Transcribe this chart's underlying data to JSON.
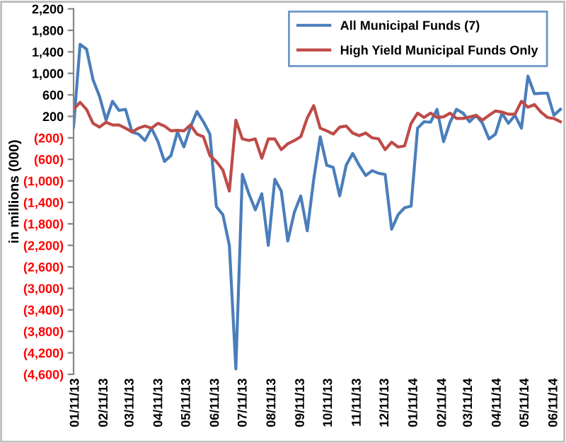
{
  "chart_data": {
    "type": "line",
    "ylabel": "in millions (000)",
    "x": [
      "2013-01-09",
      "2013-01-16",
      "2013-01-23",
      "2013-01-30",
      "2013-02-06",
      "2013-02-13",
      "2013-02-20",
      "2013-02-27",
      "2013-03-06",
      "2013-03-13",
      "2013-03-20",
      "2013-03-27",
      "2013-04-03",
      "2013-04-10",
      "2013-04-17",
      "2013-04-24",
      "2013-05-01",
      "2013-05-08",
      "2013-05-15",
      "2013-05-22",
      "2013-05-29",
      "2013-06-05",
      "2013-06-12",
      "2013-06-19",
      "2013-06-26",
      "2013-07-03",
      "2013-07-10",
      "2013-07-17",
      "2013-07-24",
      "2013-07-31",
      "2013-08-07",
      "2013-08-14",
      "2013-08-21",
      "2013-08-28",
      "2013-09-04",
      "2013-09-11",
      "2013-09-18",
      "2013-09-25",
      "2013-10-02",
      "2013-10-09",
      "2013-10-16",
      "2013-10-23",
      "2013-10-30",
      "2013-11-06",
      "2013-11-13",
      "2013-11-20",
      "2013-11-27",
      "2013-12-04",
      "2013-12-11",
      "2013-12-18",
      "2013-12-25",
      "2014-01-01",
      "2014-01-08",
      "2014-01-15",
      "2014-01-22",
      "2014-01-29",
      "2014-02-05",
      "2014-02-12",
      "2014-02-19",
      "2014-02-26",
      "2014-03-05",
      "2014-03-12",
      "2014-03-19",
      "2014-03-26",
      "2014-04-02",
      "2014-04-09",
      "2014-04-16",
      "2014-04-23",
      "2014-04-30",
      "2014-05-07",
      "2014-05-14",
      "2014-05-21",
      "2014-05-28",
      "2014-06-04",
      "2014-06-11",
      "2014-06-18"
    ],
    "series": [
      {
        "name": "All Municipal Funds (7)",
        "color": "#4a7ebb",
        "values": [
          0,
          1540,
          1450,
          880,
          570,
          130,
          480,
          310,
          330,
          -90,
          -130,
          -250,
          -20,
          -270,
          -640,
          -530,
          -90,
          -370,
          0,
          290,
          100,
          -130,
          -1480,
          -1630,
          -2200,
          -4500,
          -880,
          -1240,
          -1540,
          -1240,
          -2200,
          -970,
          -1190,
          -2120,
          -1590,
          -1280,
          -1930,
          -970,
          -180,
          -710,
          -750,
          -1280,
          -710,
          -490,
          -710,
          -900,
          -810,
          -860,
          -880,
          -1900,
          -1630,
          -1500,
          -1470,
          -20,
          100,
          90,
          330,
          -270,
          90,
          330,
          260,
          100,
          220,
          70,
          -220,
          -130,
          260,
          70,
          220,
          -20,
          950,
          620,
          630,
          630,
          220,
          330
        ]
      },
      {
        "name": "High Yield Municipal Funds Only",
        "color": "#be4b48",
        "values": [
          330,
          460,
          330,
          70,
          0,
          90,
          40,
          40,
          -20,
          -90,
          -20,
          20,
          -20,
          70,
          20,
          -70,
          -60,
          -70,
          40,
          -130,
          -180,
          -530,
          -640,
          -800,
          -1190,
          130,
          -220,
          -250,
          -220,
          -580,
          -220,
          -220,
          -420,
          -310,
          -250,
          -180,
          170,
          400,
          -20,
          -70,
          -130,
          0,
          20,
          -110,
          -160,
          -110,
          -200,
          -220,
          -420,
          -280,
          -370,
          -350,
          70,
          260,
          180,
          260,
          180,
          190,
          260,
          160,
          160,
          190,
          220,
          130,
          220,
          300,
          280,
          240,
          240,
          480,
          370,
          420,
          280,
          180,
          160,
          100
        ]
      }
    ],
    "xlim": [
      "2013-01-09",
      "2014-06-21"
    ],
    "xticks": [
      {
        "value": "2013-01-11",
        "label": "01/11/13"
      },
      {
        "value": "2013-02-11",
        "label": "02/11/13"
      },
      {
        "value": "2013-03-11",
        "label": "03/11/13"
      },
      {
        "value": "2013-04-11",
        "label": "04/11/13"
      },
      {
        "value": "2013-05-11",
        "label": "05/11/13"
      },
      {
        "value": "2013-06-11",
        "label": "06/11/13"
      },
      {
        "value": "2013-07-11",
        "label": "07/11/13"
      },
      {
        "value": "2013-08-11",
        "label": "08/11/13"
      },
      {
        "value": "2013-09-11",
        "label": "09/11/13"
      },
      {
        "value": "2013-10-11",
        "label": "10/11/13"
      },
      {
        "value": "2013-11-11",
        "label": "11/11/13"
      },
      {
        "value": "2013-12-11",
        "label": "12/11/13"
      },
      {
        "value": "2014-01-11",
        "label": "01/11/14"
      },
      {
        "value": "2014-02-11",
        "label": "02/11/14"
      },
      {
        "value": "2014-03-11",
        "label": "03/11/14"
      },
      {
        "value": "2014-04-11",
        "label": "04/11/14"
      },
      {
        "value": "2014-05-11",
        "label": "05/11/14"
      },
      {
        "value": "2014-06-11",
        "label": "06/11/14"
      }
    ],
    "ylim": [
      -4600,
      2200
    ],
    "yticks": [
      {
        "value": 2200,
        "label": "2,200"
      },
      {
        "value": 1800,
        "label": "1,800"
      },
      {
        "value": 1400,
        "label": "1,400"
      },
      {
        "value": 1000,
        "label": "1,000"
      },
      {
        "value": 600,
        "label": "600"
      },
      {
        "value": 200,
        "label": "200"
      },
      {
        "value": -200,
        "label": "(200)"
      },
      {
        "value": -600,
        "label": "(600)"
      },
      {
        "value": -1000,
        "label": "(1,000)"
      },
      {
        "value": -1400,
        "label": "(1,400)"
      },
      {
        "value": -1800,
        "label": "(1,800)"
      },
      {
        "value": -2200,
        "label": "(2,200)"
      },
      {
        "value": -2600,
        "label": "(2,600)"
      },
      {
        "value": -3000,
        "label": "(3,000)"
      },
      {
        "value": -3400,
        "label": "(3,400)"
      },
      {
        "value": -3800,
        "label": "(3,800)"
      },
      {
        "value": -4200,
        "label": "(4,200)"
      },
      {
        "value": -4600,
        "label": "(4,600)"
      }
    ],
    "grid": false,
    "legend": "top right",
    "marker": "none",
    "line_style": "solid"
  }
}
